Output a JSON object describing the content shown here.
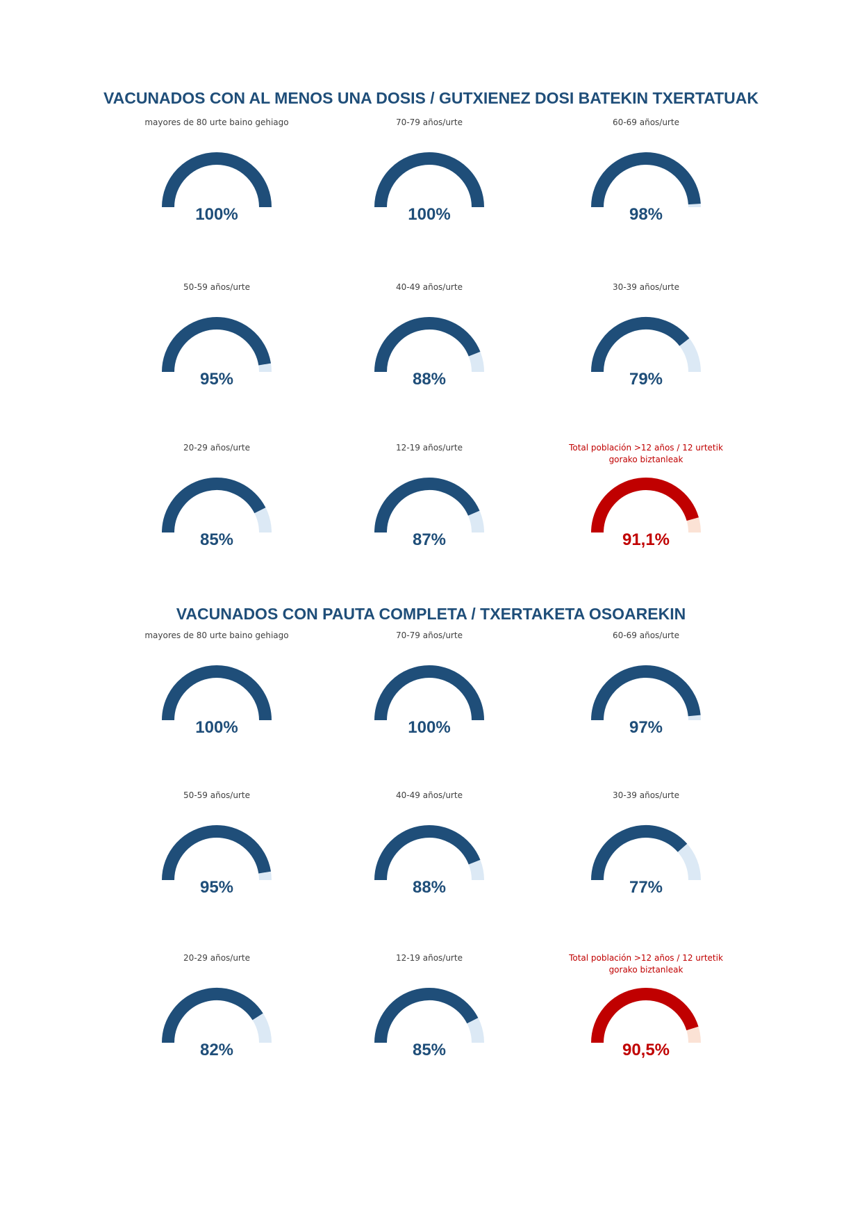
{
  "sections": [
    {
      "title": "VACUNADOS CON AL MENOS UNA DOSIS  / GUTXIENEZ DOSI BATEKIN TXERTATUAK",
      "chart_data": {
        "type": "gauge",
        "gauges": [
          {
            "label": "mayores de 80 urte baino gehiago",
            "value": 100,
            "display": "100%",
            "color": "#1f4e79",
            "track_color": "#dce9f5"
          },
          {
            "label": "70-79 años/urte",
            "value": 100,
            "display": "100%",
            "color": "#1f4e79",
            "track_color": "#dce9f5"
          },
          {
            "label": "60-69 años/urte",
            "value": 98,
            "display": "98%",
            "color": "#1f4e79",
            "track_color": "#dce9f5"
          },
          {
            "label": "50-59 años/urte",
            "value": 95,
            "display": "95%",
            "color": "#1f4e79",
            "track_color": "#dce9f5"
          },
          {
            "label": "40-49 años/urte",
            "value": 88,
            "display": "88%",
            "color": "#1f4e79",
            "track_color": "#dce9f5"
          },
          {
            "label": "30-39 años/urte",
            "value": 79,
            "display": "79%",
            "color": "#1f4e79",
            "track_color": "#dce9f5"
          },
          {
            "label": "20-29 años/urte",
            "value": 85,
            "display": "85%",
            "color": "#1f4e79",
            "track_color": "#dce9f5"
          },
          {
            "label": "12-19 años/urte",
            "value": 87,
            "display": "87%",
            "color": "#1f4e79",
            "track_color": "#dce9f5"
          },
          {
            "label": "Total población >12 años / 12 urtetik gorako biztanleak",
            "value": 91.1,
            "display": "91,1%",
            "color": "#c00000",
            "track_color": "#fbe2d5",
            "total": true
          }
        ]
      }
    },
    {
      "title": "VACUNADOS CON PAUTA COMPLETA  / TXERTAKETA OSOAREKIN",
      "chart_data": {
        "type": "gauge",
        "gauges": [
          {
            "label": "mayores de 80 urte baino gehiago",
            "value": 100,
            "display": "100%",
            "color": "#1f4e79",
            "track_color": "#dce9f5"
          },
          {
            "label": "70-79 años/urte",
            "value": 100,
            "display": "100%",
            "color": "#1f4e79",
            "track_color": "#dce9f5"
          },
          {
            "label": "60-69 años/urte",
            "value": 97,
            "display": "97%",
            "color": "#1f4e79",
            "track_color": "#dce9f5"
          },
          {
            "label": "50-59 años/urte",
            "value": 95,
            "display": "95%",
            "color": "#1f4e79",
            "track_color": "#dce9f5"
          },
          {
            "label": "40-49 años/urte",
            "value": 88,
            "display": "88%",
            "color": "#1f4e79",
            "track_color": "#dce9f5"
          },
          {
            "label": "30-39 años/urte",
            "value": 77,
            "display": "77%",
            "color": "#1f4e79",
            "track_color": "#dce9f5"
          },
          {
            "label": "20-29 años/urte",
            "value": 82,
            "display": "82%",
            "color": "#1f4e79",
            "track_color": "#dce9f5"
          },
          {
            "label": "12-19 años/urte",
            "value": 85,
            "display": "85%",
            "color": "#1f4e79",
            "track_color": "#dce9f5"
          },
          {
            "label": "Total población >12 años / 12 urtetik gorako biztanleak",
            "value": 90.5,
            "display": "90,5%",
            "color": "#c00000",
            "track_color": "#fbe2d5",
            "total": true
          }
        ]
      }
    }
  ]
}
